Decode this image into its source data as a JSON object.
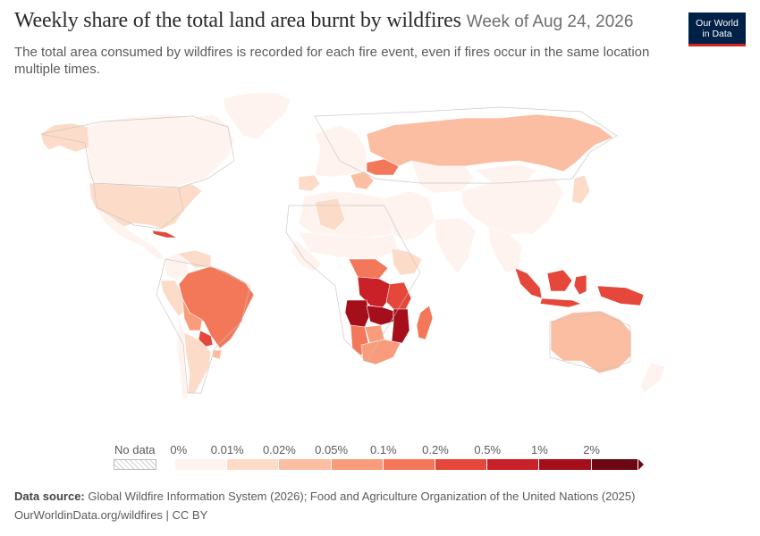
{
  "header": {
    "title": "Weekly share of the total land area burnt by wildfires",
    "date": "Week of Aug 24, 2026",
    "subtitle": "The total area consumed by wildfires is recorded for each fire event, even if fires occur in the same location multiple times."
  },
  "logo": {
    "line1": "Our World",
    "line2": "in Data"
  },
  "legend": {
    "no_data_label": "No data",
    "bins": [
      {
        "label": "0%",
        "color": "#fef3ee"
      },
      {
        "label": "0.01%",
        "color": "#fcdcc9"
      },
      {
        "label": "0.02%",
        "color": "#fbbea2"
      },
      {
        "label": "0.05%",
        "color": "#f89c7c"
      },
      {
        "label": "0.1%",
        "color": "#f3785a"
      },
      {
        "label": "0.2%",
        "color": "#e5473a"
      },
      {
        "label": "0.5%",
        "color": "#c92127"
      },
      {
        "label": "1%",
        "color": "#a50f1c"
      },
      {
        "label": "2%",
        "color": "#6e0714"
      }
    ]
  },
  "source": {
    "prefix": "Data source:",
    "text": "Global Wildfire Information System (2026); Food and Agriculture Organization of the United Nations (2025)"
  },
  "footer": "OurWorldinData.org/wildfires | CC BY",
  "map_regions": [
    {
      "name": "Canada",
      "color": "#fef3ee"
    },
    {
      "name": "Alaska",
      "color": "#fcdcc9"
    },
    {
      "name": "Greenland",
      "color": "#fef3ee"
    },
    {
      "name": "United States",
      "color": "#fcdcc9"
    },
    {
      "name": "Mexico",
      "color": "#fef3ee"
    },
    {
      "name": "Cuba",
      "color": "#e5473a"
    },
    {
      "name": "Central America",
      "color": "#fef3ee"
    },
    {
      "name": "Colombia",
      "color": "#fef3ee"
    },
    {
      "name": "Venezuela",
      "color": "#fcdcc9"
    },
    {
      "name": "Peru",
      "color": "#fcdcc9"
    },
    {
      "name": "Brazil",
      "color": "#f3785a"
    },
    {
      "name": "Bolivia",
      "color": "#f89c7c"
    },
    {
      "name": "Paraguay",
      "color": "#e5473a"
    },
    {
      "name": "Argentina",
      "color": "#fcdcc9"
    },
    {
      "name": "Chile",
      "color": "#fef3ee"
    },
    {
      "name": "Uruguay",
      "color": "#fbbea2"
    },
    {
      "name": "Western Europe",
      "color": "#fef3ee"
    },
    {
      "name": "Iberia",
      "color": "#fcdcc9"
    },
    {
      "name": "Ukraine",
      "color": "#f3785a"
    },
    {
      "name": "Balkans",
      "color": "#fbbea2"
    },
    {
      "name": "Russia",
      "color": "#fbbea2"
    },
    {
      "name": "North Africa",
      "color": "#fef3ee"
    },
    {
      "name": "Algeria",
      "color": "#fcdcc9"
    },
    {
      "name": "Sahel",
      "color": "#fef3ee"
    },
    {
      "name": "West Africa",
      "color": "#fef3ee"
    },
    {
      "name": "Ethiopia",
      "color": "#fcdcc9"
    },
    {
      "name": "Central African Republic",
      "color": "#f3785a"
    },
    {
      "name": "DR Congo",
      "color": "#c92127"
    },
    {
      "name": "Tanzania",
      "color": "#e5473a"
    },
    {
      "name": "Angola",
      "color": "#a50f1c"
    },
    {
      "name": "Zambia",
      "color": "#a50f1c"
    },
    {
      "name": "Mozambique",
      "color": "#a50f1c"
    },
    {
      "name": "Namibia",
      "color": "#f3785a"
    },
    {
      "name": "Botswana",
      "color": "#f89c7c"
    },
    {
      "name": "South Africa",
      "color": "#f89c7c"
    },
    {
      "name": "Madagascar",
      "color": "#f3785a"
    },
    {
      "name": "Middle East",
      "color": "#fef3ee"
    },
    {
      "name": "Central Asia",
      "color": "#fef3ee"
    },
    {
      "name": "China",
      "color": "#fef3ee"
    },
    {
      "name": "Mongolia",
      "color": "#fef3ee"
    },
    {
      "name": "India",
      "color": "#fef3ee"
    },
    {
      "name": "Southeast Asia",
      "color": "#fef3ee"
    },
    {
      "name": "Japan",
      "color": "#fcdcc9"
    },
    {
      "name": "Sumatra",
      "color": "#e5473a"
    },
    {
      "name": "Borneo",
      "color": "#e5473a"
    },
    {
      "name": "Sulawesi",
      "color": "#e5473a"
    },
    {
      "name": "Java",
      "color": "#e5473a"
    },
    {
      "name": "New Guinea",
      "color": "#e5473a"
    },
    {
      "name": "Australia",
      "color": "#fbbea2"
    },
    {
      "name": "New Zealand",
      "color": "#fef3ee"
    }
  ]
}
